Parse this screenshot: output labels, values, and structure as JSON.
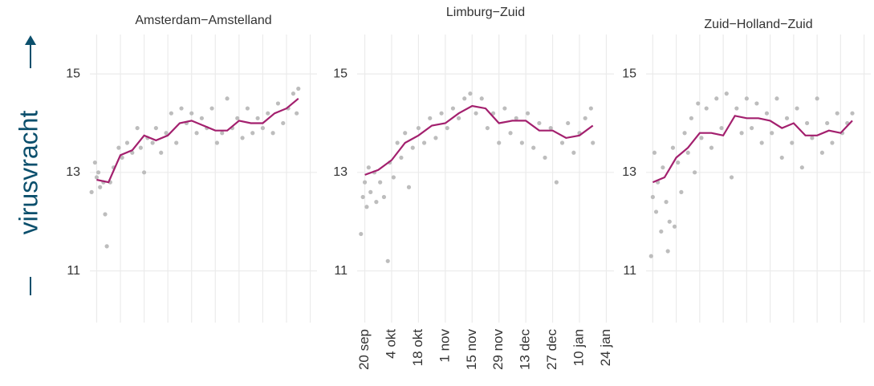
{
  "y_label": "virusvracht",
  "chart_data": [
    {
      "type": "line",
      "title": "Amsterdam−Amstelland",
      "xlim": [
        -4,
        130
      ],
      "ylim": [
        9.95,
        15.8
      ],
      "yticks": [
        11,
        13,
        15
      ],
      "grid": true,
      "series": [
        {
          "type": "scatter",
          "color": "#bdbdbd",
          "x": [
            -3,
            -1,
            0,
            1,
            2,
            4,
            5,
            6,
            8,
            10,
            13,
            15,
            18,
            21,
            24,
            26,
            28,
            30,
            33,
            35,
            38,
            41,
            44,
            47,
            50,
            53,
            56,
            59,
            62,
            65,
            68,
            71,
            74,
            77,
            80,
            83,
            86,
            89,
            92,
            95,
            98,
            101,
            104,
            107,
            110,
            113,
            116,
            118,
            119
          ],
          "values": [
            12.6,
            13.2,
            12.9,
            13.0,
            12.7,
            12.8,
            12.15,
            11.5,
            12.8,
            13.1,
            13.5,
            13.3,
            13.6,
            13.4,
            13.9,
            13.5,
            13.0,
            13.7,
            13.6,
            13.9,
            13.4,
            13.8,
            14.2,
            13.6,
            14.3,
            14.0,
            14.2,
            13.8,
            14.1,
            13.9,
            14.3,
            13.6,
            13.8,
            14.5,
            13.9,
            14.1,
            13.7,
            14.3,
            13.8,
            14.1,
            13.9,
            14.2,
            13.8,
            14.4,
            14.0,
            14.3,
            14.6,
            14.2,
            14.7
          ]
        },
        {
          "type": "line",
          "color": "#a3206e",
          "x": [
            0,
            7,
            14,
            21,
            28,
            35,
            42,
            49,
            56,
            63,
            70,
            77,
            84,
            91,
            98,
            105,
            112,
            119
          ],
          "values": [
            12.85,
            12.8,
            13.35,
            13.45,
            13.75,
            13.65,
            13.75,
            14.0,
            14.05,
            13.95,
            13.85,
            13.85,
            14.05,
            14.0,
            14.0,
            14.2,
            14.3,
            14.5
          ]
        }
      ]
    },
    {
      "type": "line",
      "title": "Limburg−Zuid",
      "xlim": [
        -4,
        130
      ],
      "ylim": [
        9.95,
        15.8
      ],
      "yticks": [
        11,
        13,
        15
      ],
      "grid": true,
      "xticks": [
        {
          "value": 0,
          "label": "20 sep"
        },
        {
          "value": 14,
          "label": "4 okt"
        },
        {
          "value": 28,
          "label": "18 okt"
        },
        {
          "value": 42,
          "label": "1 nov"
        },
        {
          "value": 56,
          "label": "15 nov"
        },
        {
          "value": 70,
          "label": "29 nov"
        },
        {
          "value": 84,
          "label": "13 dec"
        },
        {
          "value": 98,
          "label": "27 dec"
        },
        {
          "value": 112,
          "label": "10 jan"
        },
        {
          "value": 126,
          "label": "24 jan"
        }
      ],
      "series": [
        {
          "type": "scatter",
          "color": "#bdbdbd",
          "x": [
            -2,
            -1,
            0,
            1,
            2,
            3,
            5,
            6,
            8,
            10,
            12,
            13,
            15,
            17,
            19,
            21,
            23,
            25,
            28,
            31,
            34,
            37,
            40,
            43,
            46,
            49,
            52,
            55,
            58,
            61,
            64,
            67,
            70,
            73,
            76,
            79,
            82,
            85,
            88,
            91,
            94,
            97,
            100,
            103,
            106,
            109,
            112,
            115,
            118,
            119
          ],
          "values": [
            11.75,
            12.5,
            12.8,
            12.3,
            13.1,
            12.6,
            13.0,
            12.4,
            12.8,
            12.5,
            11.2,
            13.2,
            12.9,
            13.6,
            13.3,
            13.8,
            12.7,
            13.5,
            13.9,
            13.6,
            14.1,
            13.7,
            14.2,
            13.9,
            14.3,
            14.1,
            14.5,
            14.6,
            14.2,
            14.5,
            13.9,
            14.2,
            13.6,
            14.3,
            13.8,
            14.1,
            13.6,
            14.2,
            13.5,
            14.0,
            13.3,
            13.9,
            12.8,
            13.6,
            14.0,
            13.4,
            13.8,
            14.1,
            14.3,
            13.6
          ]
        },
        {
          "type": "line",
          "color": "#a3206e",
          "x": [
            0,
            7,
            14,
            21,
            28,
            35,
            42,
            49,
            56,
            63,
            70,
            77,
            84,
            91,
            98,
            105,
            112,
            119
          ],
          "values": [
            12.95,
            13.05,
            13.25,
            13.6,
            13.75,
            13.95,
            14.0,
            14.2,
            14.35,
            14.3,
            14.0,
            14.05,
            14.05,
            13.85,
            13.85,
            13.7,
            13.75,
            13.95
          ]
        }
      ]
    },
    {
      "type": "line",
      "title": "Zuid−Holland−Zuid",
      "xlim": [
        -4,
        130
      ],
      "ylim": [
        9.95,
        15.8
      ],
      "yticks": [
        11,
        13,
        15
      ],
      "grid": true,
      "series": [
        {
          "type": "scatter",
          "color": "#bdbdbd",
          "x": [
            -1,
            0,
            1,
            2,
            3,
            5,
            6,
            8,
            9,
            10,
            12,
            13,
            15,
            17,
            19,
            21,
            23,
            25,
            27,
            29,
            32,
            35,
            38,
            41,
            44,
            47,
            50,
            53,
            56,
            59,
            62,
            65,
            68,
            71,
            74,
            77,
            80,
            83,
            86,
            89,
            92,
            95,
            98,
            101,
            104,
            107,
            110,
            113,
            116,
            119
          ],
          "values": [
            11.3,
            12.5,
            13.4,
            12.2,
            12.8,
            11.8,
            13.1,
            12.4,
            11.4,
            12.0,
            13.5,
            11.9,
            13.2,
            12.6,
            13.8,
            13.4,
            14.1,
            13.0,
            14.4,
            13.7,
            14.3,
            13.5,
            14.5,
            13.9,
            14.6,
            12.9,
            14.3,
            13.8,
            14.5,
            13.9,
            14.4,
            13.6,
            14.2,
            13.8,
            14.5,
            13.3,
            14.1,
            13.6,
            14.3,
            13.1,
            14.0,
            13.7,
            14.5,
            13.4,
            14.0,
            13.6,
            14.2,
            13.8,
            14.0,
            14.2
          ]
        },
        {
          "type": "line",
          "color": "#a3206e",
          "x": [
            0,
            7,
            14,
            21,
            28,
            35,
            42,
            49,
            56,
            63,
            70,
            77,
            84,
            91,
            98,
            105,
            112,
            119
          ],
          "values": [
            12.8,
            12.9,
            13.3,
            13.5,
            13.8,
            13.8,
            13.75,
            14.15,
            14.1,
            14.1,
            14.05,
            13.9,
            14.0,
            13.75,
            13.75,
            13.85,
            13.8,
            14.05
          ]
        }
      ]
    }
  ]
}
